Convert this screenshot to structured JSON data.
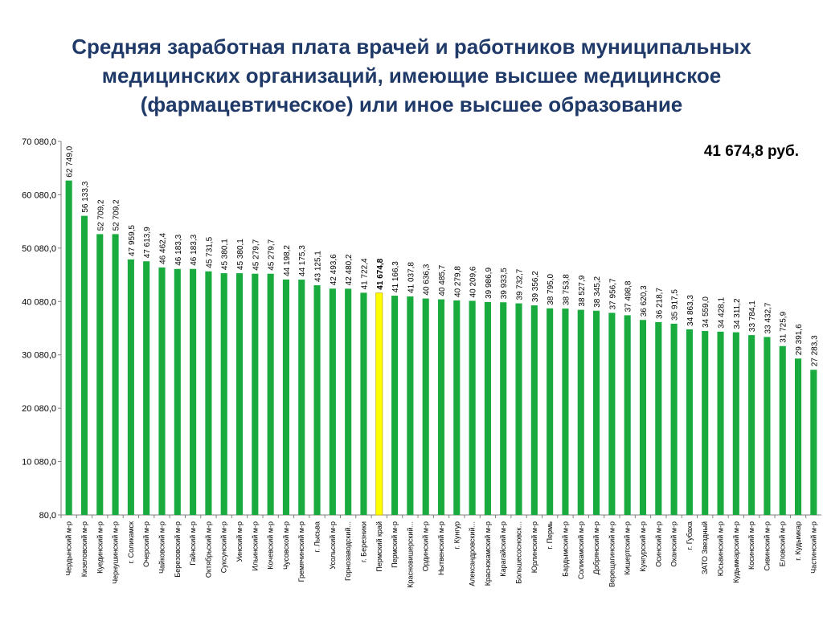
{
  "title_lines": [
    "Средняя заработная плата врачей и работников муниципальных",
    "медицинских организаций, имеющие высшее медицинское",
    "(фармацевтическое) или иное высшее образование"
  ],
  "highlight_value": "41 674,8 руб.",
  "colors": {
    "bar": "#1aab3f",
    "highlight_bar": "#ffff00",
    "axis": "#808080",
    "title": "#1f3a68"
  },
  "chart_data": {
    "type": "bar",
    "ylim": [
      80,
      70080
    ],
    "yticks": [
      80,
      10080,
      20080,
      30080,
      40080,
      50080,
      60080,
      70080
    ],
    "ytick_labels": [
      "80,0",
      "10 080,0",
      "20 080,0",
      "30 080,0",
      "40 080,0",
      "50 080,0",
      "60 080,0",
      "70 080,0"
    ],
    "grid": false,
    "highlight_index": 20,
    "categories": [
      "Чердынский м-р",
      "Кизеловский м-р",
      "Куединский м-р",
      "Чернушинский м-р",
      "г. Соликамск",
      "Очерский м-р",
      "Чайковский м-р",
      "Березовский м-р",
      "Гайнский м-р",
      "Октябрьский м-р",
      "Суксунский м-р",
      "Уинский м-р",
      "Ильинский м-р",
      "Кочевский м-р",
      "Чусовской м-р",
      "Гремячинский м-р",
      "г. Лысьва",
      "Усольский м-р",
      "Горнозаводский...",
      "г. Березники",
      "Пермский край",
      "Пермский м-р",
      "Красновишерский...",
      "Ординский м-р",
      "Нытвенский м-р",
      "г. Кунгур",
      "Александровский...",
      "Краснокамский м-р",
      "Карагайский м-р",
      "Большесосновск...",
      "Юрлинский м-р",
      "г. Пермь",
      "Бардымский м-р",
      "Соликамский м-р",
      "Добрянский м-р",
      "Верещагинский м-р",
      "Кишертский м-р",
      "Кунгурский м-р",
      "Осинский м-р",
      "Оханский м-р",
      "г. Губаха",
      "ЗАТО Звездный",
      "Юсьвинский м-р",
      "Кудымкарский м-р",
      "Косинский м-р",
      "Сивинский м-р",
      "Еловский м-р",
      "г. Кудымкар",
      "Частинский м-р"
    ],
    "values": [
      62749.0,
      56133.3,
      52709.2,
      52709.2,
      47959.5,
      47613.9,
      46462.4,
      46183.3,
      46183.3,
      45731.5,
      45380.1,
      45380.1,
      45279.7,
      45279.7,
      44198.2,
      44175.3,
      43125.1,
      42493.6,
      42480.2,
      41722.4,
      41674.8,
      41166.3,
      41037.8,
      40636.3,
      40485.7,
      40279.8,
      40209.6,
      39986.9,
      39933.5,
      39732.7,
      39356.2,
      38795.0,
      38753.8,
      38527.9,
      38345.2,
      37956.7,
      37498.8,
      36620.3,
      36218.7,
      35917.5,
      34863.3,
      34559.0,
      34428.1,
      34311.2,
      33784.1,
      33432.7,
      31725.9,
      29391.6,
      27283.3
    ],
    "value_labels": [
      "62 749,0",
      "56 133,3",
      "52 709,2",
      "52 709,2",
      "47 959,5",
      "47 613,9",
      "46 462,4",
      "46 183,3",
      "46 183,3",
      "45 731,5",
      "45 380,1",
      "45 380,1",
      "45 279,7",
      "45 279,7",
      "44 198,2",
      "44 175,3",
      "43 125,1",
      "42 493,6",
      "42 480,2",
      "41 722,4",
      "41 674,8",
      "41 166,3",
      "41 037,8",
      "40 636,3",
      "40 485,7",
      "40 279,8",
      "40 209,6",
      "39 986,9",
      "39 933,5",
      "39 732,7",
      "39 356,2",
      "38 795,0",
      "38 753,8",
      "38 527,9",
      "38 345,2",
      "37 956,7",
      "37 498,8",
      "36 620,3",
      "36 218,7",
      "35 917,5",
      "34 863,3",
      "34 559,0",
      "34 428,1",
      "34 311,2",
      "33 784,1",
      "33 432,7",
      "31 725,9",
      "29 391,6",
      "27 283,3"
    ]
  }
}
